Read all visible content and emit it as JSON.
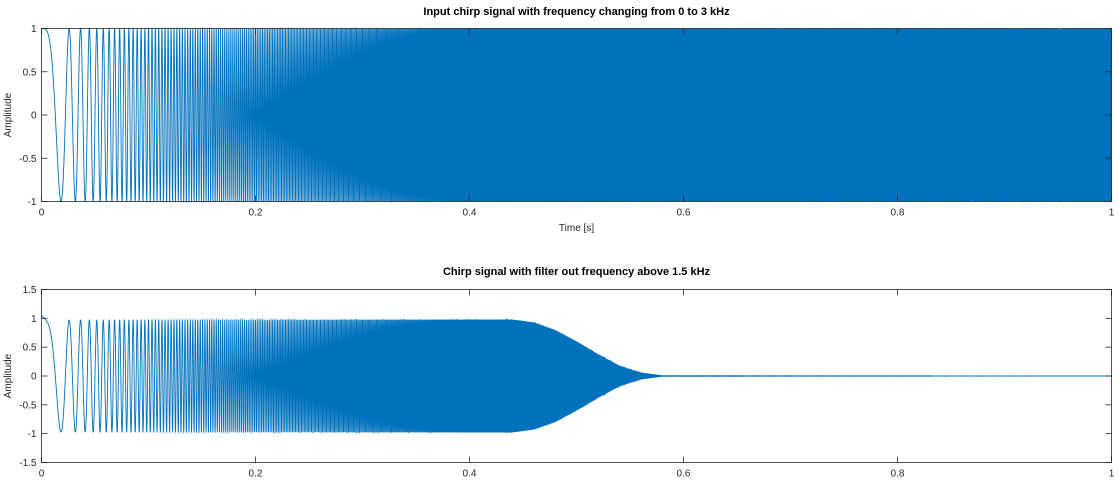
{
  "chart_data": [
    {
      "type": "line",
      "title": "Input chirp signal with frequency changing from 0 to 3 kHz",
      "xlabel": "Time [s]",
      "ylabel": "Amplitude",
      "xlim": [
        0,
        1
      ],
      "ylim": [
        -1,
        1
      ],
      "xticks": [
        0,
        0.2,
        0.4,
        0.6,
        0.8,
        1
      ],
      "xtick_labels": [
        "0",
        "0.2",
        "0.4",
        "0.6",
        "0.8",
        "1"
      ],
      "yticks": [
        -1,
        -0.5,
        0,
        0.5,
        1
      ],
      "ytick_labels": [
        "-1",
        "-0.5",
        "0",
        "0.5",
        "1"
      ],
      "grid": false,
      "line_color": "#0072BD",
      "series": [
        {
          "signal": "chirp",
          "f0_hz": 0,
          "f1_hz": 3000,
          "t_end_s": 1,
          "amplitude": 1
        }
      ]
    },
    {
      "type": "line",
      "title": "Chirp signal with filter out frequency above 1.5 kHz",
      "xlabel": "",
      "ylabel": "Amplitude",
      "xlim": [
        0,
        1
      ],
      "ylim": [
        -1.5,
        1.5
      ],
      "xticks": [
        0,
        0.2,
        0.4,
        0.6,
        0.8,
        1
      ],
      "xtick_labels": [
        "0",
        "0.2",
        "0.4",
        "0.6",
        "0.8",
        "1"
      ],
      "yticks": [
        -1.5,
        -1,
        -0.5,
        0,
        0.5,
        1,
        1.5
      ],
      "ytick_labels": [
        "-1.5",
        "-1",
        "-0.5",
        "0",
        "0.5",
        "1",
        "1.5"
      ],
      "grid": false,
      "line_color": "#0072BD",
      "series": [
        {
          "signal": "filtered chirp",
          "f0_hz": 0,
          "f1_hz": 3000,
          "t_end_s": 1,
          "cutoff_hz": 1500,
          "envelope_time_s": [
            0,
            0.005,
            0.44,
            0.46,
            0.48,
            0.5,
            0.52,
            0.54,
            0.56,
            0.58,
            1.0
          ],
          "envelope_amplitude": [
            1.05,
            0.97,
            0.98,
            0.93,
            0.8,
            0.6,
            0.38,
            0.18,
            0.05,
            0.005,
            0.0
          ]
        }
      ]
    }
  ]
}
